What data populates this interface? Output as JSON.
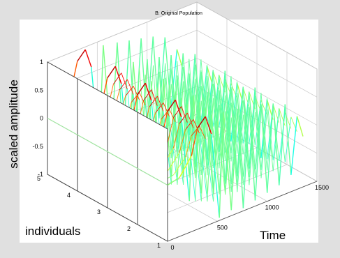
{
  "chart_data": {
    "type": "line",
    "title": "B: Original Population",
    "xlabel": "Time",
    "ylabel": "individuals",
    "zlabel": "scaled amplitude",
    "xlim": [
      0,
      1500
    ],
    "ylim": [
      1,
      5
    ],
    "zlim": [
      -1,
      1
    ],
    "x_ticks": [
      "0",
      "500",
      "1000",
      "1500"
    ],
    "y_ticks": [
      "1",
      "2",
      "3",
      "4",
      "5"
    ],
    "z_ticks": [
      "-1",
      "-0.5",
      "0",
      "0.5",
      "1"
    ],
    "grid": true,
    "colormap": "jet",
    "individuals": [
      1,
      2,
      3,
      4,
      5
    ],
    "waveform": {
      "time": [
        0,
        120,
        240,
        300,
        380,
        440,
        520,
        560,
        640,
        700,
        760,
        820,
        880,
        940,
        1000,
        1060,
        1120,
        1180,
        1240,
        1300,
        1360
      ],
      "amplitude": [
        0,
        0.05,
        0.35,
        0.8,
        0.95,
        0.6,
        -0.95,
        0.9,
        -0.9,
        0.85,
        -0.95,
        0.8,
        -0.9,
        0.75,
        -0.85,
        0.7,
        -0.8,
        0.6,
        -0.7,
        0.3,
        -0.1
      ]
    }
  },
  "colors": {
    "background": "#e0e0e0",
    "axes_face": "#ffffff",
    "grid": "#c8c8c8"
  }
}
